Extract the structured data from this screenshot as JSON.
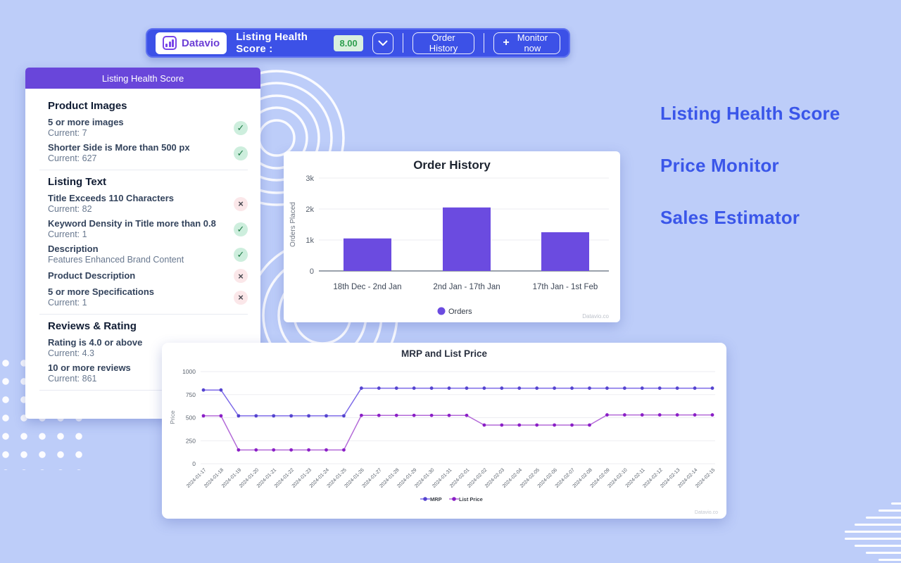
{
  "page": {
    "background": "#bdcdf9",
    "accent_blue": "#3c51e7",
    "accent_purple": "#6946da"
  },
  "toolbar": {
    "brand": "Datavio",
    "score_label": "Listing Health Score :",
    "score_value": "8.00",
    "order_history_label": "Order History",
    "monitor_now_label": "Monitor now"
  },
  "icons": {
    "plus": "+",
    "check": "✓",
    "cross": "×"
  },
  "health_card": {
    "title": "Listing Health Score",
    "sections": [
      {
        "heading": "Product Images",
        "items": [
          {
            "title": "5 or more images",
            "subtitle": "Current: 7",
            "status": "pass"
          },
          {
            "title": "Shorter Side is More than 500 px",
            "subtitle": "Current: 627",
            "status": "pass"
          }
        ]
      },
      {
        "heading": "Listing Text",
        "items": [
          {
            "title": "Title Exceeds 110 Characters",
            "subtitle": "Current: 82",
            "status": "fail"
          },
          {
            "title": "Keyword Density in Title more than 0.8",
            "subtitle": "Current: 1",
            "status": "pass"
          },
          {
            "title": "Description",
            "subtitle": "Features Enhanced Brand Content",
            "status": "pass"
          },
          {
            "title": "Product Description",
            "subtitle": "",
            "status": "fail"
          },
          {
            "title": "5 or more Specifications",
            "subtitle": "Current: 1",
            "status": "fail"
          }
        ]
      },
      {
        "heading": "Reviews & Rating",
        "items": [
          {
            "title": "Rating is 4.0 or above",
            "subtitle": "Current: 4.3",
            "status": "none"
          },
          {
            "title": "10 or more reviews",
            "subtitle": "Current: 861",
            "status": "none"
          }
        ]
      }
    ]
  },
  "headlines": [
    "Listing Health Score",
    "Price Monitor",
    "Sales Estimator"
  ],
  "chart_data": [
    {
      "id": "order-history",
      "type": "bar",
      "title": "Order History",
      "categories": [
        "18th Dec - 2nd Jan",
        "2nd Jan - 17th Jan",
        "17th Jan - 1st Feb"
      ],
      "values": [
        1050,
        2050,
        1250
      ],
      "xlabel": "",
      "ylabel": "Orders Placed",
      "ylim": [
        0,
        3000
      ],
      "yticks": [
        0,
        1000,
        2000,
        3000
      ],
      "ytick_labels": [
        "0",
        "1k",
        "2k",
        "3k"
      ],
      "grid": true,
      "legend_position": "bottom",
      "legend": [
        {
          "label": "Orders",
          "color": "#6b4be0"
        }
      ],
      "bar_color": "#6b4be0",
      "watermark": "Datavio.co"
    },
    {
      "id": "price-monitor",
      "type": "line",
      "title": "MRP and List Price",
      "x": [
        "2024-01-17",
        "2024-01-18",
        "2024-01-19",
        "2024-01-20",
        "2024-01-21",
        "2024-01-22",
        "2024-01-23",
        "2024-01-24",
        "2024-01-25",
        "2024-01-26",
        "2024-01-27",
        "2024-01-28",
        "2024-01-29",
        "2024-01-30",
        "2024-01-31",
        "2024-02-01",
        "2024-02-02",
        "2024-02-03",
        "2024-02-04",
        "2024-02-05",
        "2024-02-06",
        "2024-02-07",
        "2024-02-08",
        "2024-02-09",
        "2024-02-10",
        "2024-02-11",
        "2024-02-12",
        "2024-02-13",
        "2024-02-14",
        "2024-02-15"
      ],
      "series": [
        {
          "name": "MRP",
          "color": "#7d6ae8",
          "dot_color": "#5443cf",
          "values": [
            800,
            800,
            520,
            520,
            520,
            520,
            520,
            520,
            520,
            820,
            820,
            820,
            820,
            820,
            820,
            820,
            820,
            820,
            820,
            820,
            820,
            820,
            820,
            820,
            820,
            820,
            820,
            820,
            820,
            820
          ]
        },
        {
          "name": "List Price",
          "color": "#b36ad8",
          "dot_color": "#8a1ec6",
          "values": [
            520,
            520,
            150,
            150,
            150,
            150,
            150,
            150,
            150,
            525,
            525,
            525,
            525,
            525,
            525,
            525,
            420,
            420,
            420,
            420,
            420,
            420,
            420,
            530,
            530,
            530,
            530,
            530,
            530,
            530
          ]
        }
      ],
      "xlabel": "",
      "ylabel": "Price",
      "ylim": [
        0,
        1000
      ],
      "yticks": [
        0,
        250,
        500,
        750,
        1000
      ],
      "grid": true,
      "legend_position": "bottom",
      "watermark": "Datavio.co"
    }
  ]
}
